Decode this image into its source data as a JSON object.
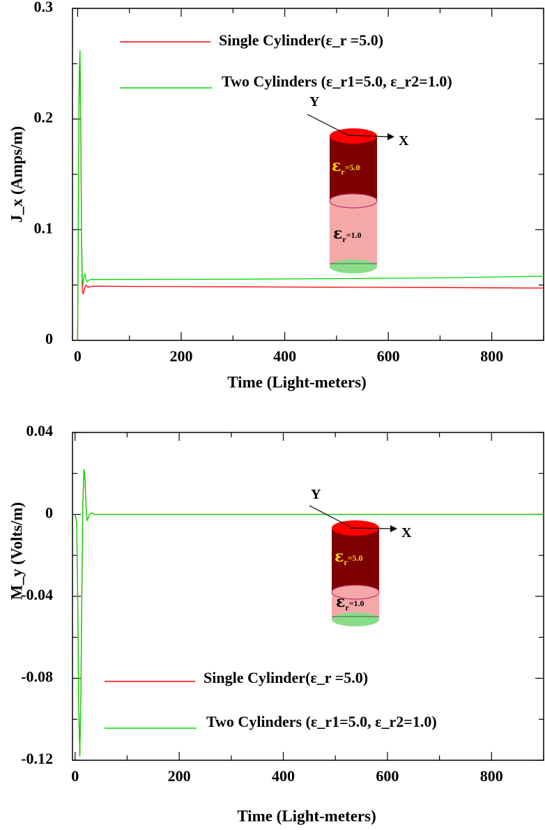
{
  "chart_data": [
    {
      "type": "line",
      "xlabel": "Time (Light-meters)",
      "ylabel": "J_x (Amps/m)",
      "xlim": [
        -10,
        900
      ],
      "ylim": [
        0,
        0.3
      ],
      "xticks": [
        0,
        200,
        400,
        600,
        800
      ],
      "yticks": [
        0,
        0.1,
        0.2,
        0.3
      ],
      "ytick_labels": [
        "0",
        "0.1",
        "0.2",
        "0.3"
      ],
      "legend_position": "top",
      "series": [
        {
          "name": "Single Cylinder(ε_r =5.0)",
          "color": "#ff0000",
          "x": [
            0,
            1.5,
            3,
            4.5,
            6,
            7.5,
            9,
            10.5,
            12,
            14,
            16,
            18,
            20,
            25,
            30,
            40,
            100,
            300,
            500,
            700,
            900
          ],
          "y": [
            0.0,
            0.12,
            0.24,
            0.255,
            0.19,
            0.09,
            0.045,
            0.042,
            0.044,
            0.048,
            0.05,
            0.049,
            0.048,
            0.0485,
            0.049,
            0.049,
            0.0488,
            0.0484,
            0.048,
            0.0477,
            0.0473
          ]
        },
        {
          "name": "Two Cylinders (ε_r1=5.0, ε_r2=1.0)",
          "color": "#00dd00",
          "x": [
            0,
            1.5,
            3,
            4.5,
            6,
            7.5,
            9,
            10.5,
            12,
            14,
            16,
            18,
            20,
            25,
            30,
            40,
            100,
            300,
            500,
            700,
            900
          ],
          "y": [
            0.0,
            0.125,
            0.245,
            0.262,
            0.2,
            0.1,
            0.055,
            0.05,
            0.057,
            0.06,
            0.056,
            0.053,
            0.054,
            0.055,
            0.055,
            0.055,
            0.055,
            0.0553,
            0.0558,
            0.0565,
            0.058
          ]
        }
      ],
      "inset": {
        "axis_y": "Y",
        "axis_x": "X",
        "top_eps_symbol": "ε",
        "top_eps_sub": "r",
        "top_eps_value": "=5.0",
        "bottom_eps_symbol": "ε",
        "bottom_eps_sub": "r",
        "bottom_eps_value": "=1.0",
        "top_color": "#7d0000",
        "bottom_color": "#f5a8a8"
      }
    },
    {
      "type": "line",
      "xlabel": "Time (Light-meters)",
      "ylabel": "M_y (Volts/m)",
      "xlim": [
        -5,
        900
      ],
      "ylim": [
        -0.12,
        0.04
      ],
      "xticks": [
        0,
        200,
        400,
        600,
        800
      ],
      "yticks": [
        -0.12,
        -0.08,
        -0.04,
        0,
        0.04
      ],
      "ytick_labels": [
        "-0.12",
        "-0.08",
        "-0.04",
        "0",
        "0.04"
      ],
      "legend_position": "bottom",
      "series": [
        {
          "name": "Single Cylinder(ε_r =5.0)",
          "color": "#ff0000",
          "x": [
            0,
            3,
            5,
            7,
            9,
            11,
            13,
            15,
            17,
            19,
            21,
            23,
            25,
            28,
            32,
            36,
            40,
            50,
            900
          ],
          "y": [
            0.0,
            -0.004,
            -0.04,
            -0.095,
            -0.118,
            -0.09,
            -0.04,
            0.005,
            0.022,
            0.018,
            0.004,
            -0.003,
            -0.002,
            0.0,
            0.0008,
            0.0,
            0.0,
            0.0,
            0.0
          ]
        },
        {
          "name": "Two Cylinders (ε_r1=5.0, ε_r2=1.0)",
          "color": "#00dd00",
          "x": [
            0,
            3,
            5,
            7,
            9,
            11,
            13,
            15,
            17,
            19,
            21,
            23,
            25,
            28,
            32,
            36,
            40,
            50,
            900
          ],
          "y": [
            0.0,
            -0.004,
            -0.04,
            -0.095,
            -0.118,
            -0.09,
            -0.04,
            0.005,
            0.022,
            0.018,
            0.004,
            -0.003,
            -0.002,
            0.0,
            0.0008,
            0.0,
            0.0,
            0.0,
            0.0
          ]
        }
      ],
      "inset": {
        "axis_y": "Y",
        "axis_x": "X",
        "top_eps_symbol": "ε",
        "top_eps_sub": "r",
        "top_eps_value": "=5.0",
        "bottom_eps_symbol": "ε",
        "bottom_eps_sub": "r",
        "bottom_eps_value": "=1.0",
        "top_color": "#7d0000",
        "bottom_color": "#f5a8a8"
      }
    }
  ]
}
